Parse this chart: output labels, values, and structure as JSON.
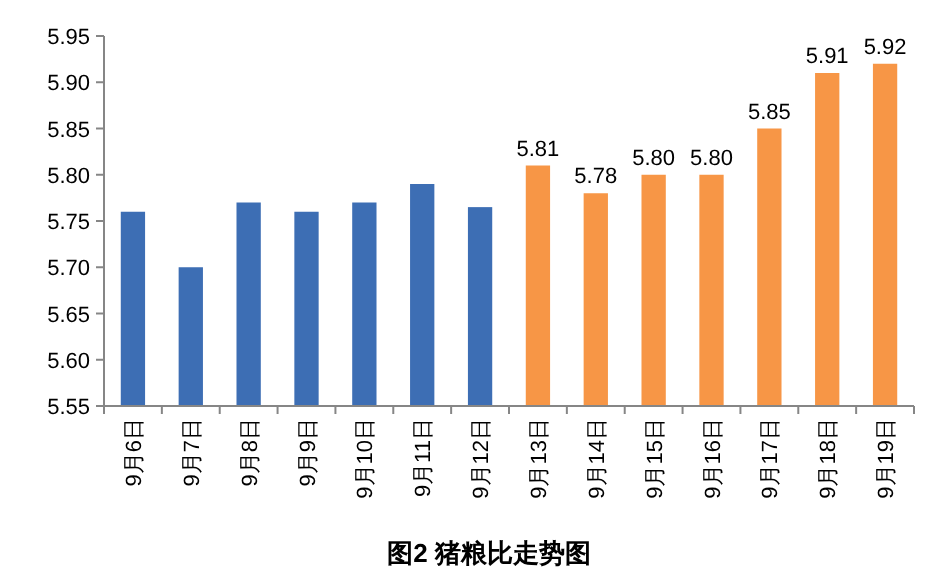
{
  "chart_data": {
    "type": "bar",
    "title": "图2 猪粮比走势图",
    "categories": [
      "9月6日",
      "9月7日",
      "9月8日",
      "9月9日",
      "9月10日",
      "9月11日",
      "9月12日",
      "9月13日",
      "9月14日",
      "9月15日",
      "9月16日",
      "9月17日",
      "9月18日",
      "9月19日"
    ],
    "values": [
      5.76,
      5.7,
      5.77,
      5.76,
      5.77,
      5.79,
      5.765,
      5.81,
      5.78,
      5.8,
      5.8,
      5.85,
      5.91,
      5.92
    ],
    "colors": [
      "#3d6eb4",
      "#3d6eb4",
      "#3d6eb4",
      "#3d6eb4",
      "#3d6eb4",
      "#3d6eb4",
      "#3d6eb4",
      "#f79646",
      "#f79646",
      "#f79646",
      "#f79646",
      "#f79646",
      "#f79646",
      "#f79646"
    ],
    "value_labels": [
      null,
      null,
      null,
      null,
      null,
      null,
      null,
      "5.81",
      "5.78",
      "5.80",
      "5.80",
      "5.85",
      "5.91",
      "5.92"
    ],
    "ylim": [
      5.55,
      5.95
    ],
    "yticks": [
      {
        "value": 5.55,
        "label": "5.55"
      },
      {
        "value": 5.6,
        "label": "5.60"
      },
      {
        "value": 5.65,
        "label": "5.65"
      },
      {
        "value": 5.7,
        "label": "5.70"
      },
      {
        "value": 5.75,
        "label": "5.75"
      },
      {
        "value": 5.8,
        "label": "5.80"
      },
      {
        "value": 5.85,
        "label": "5.85"
      },
      {
        "value": 5.9,
        "label": "5.90"
      },
      {
        "value": 5.95,
        "label": "5.95"
      }
    ],
    "grid": false
  }
}
